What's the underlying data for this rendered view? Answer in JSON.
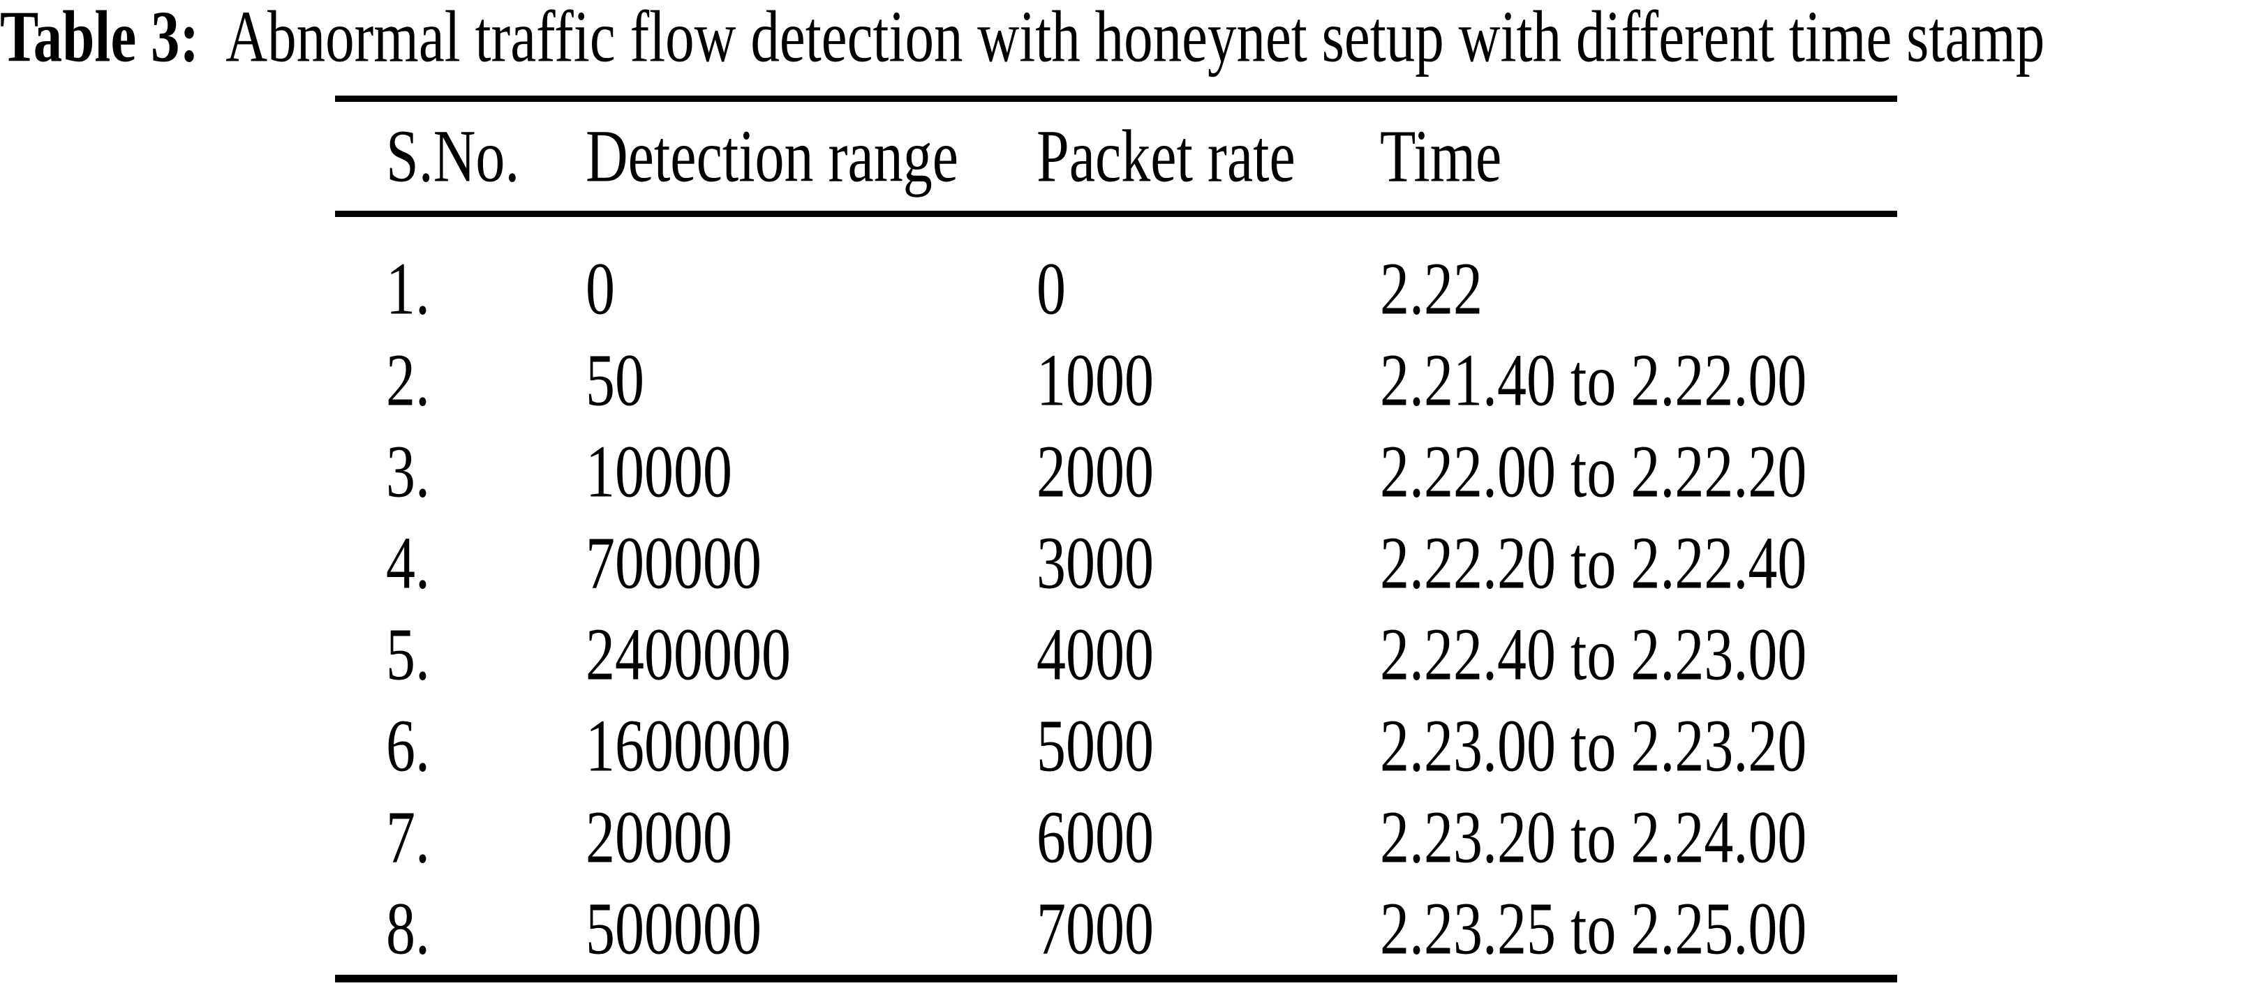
{
  "page": {
    "background_color": "#ffffff",
    "text_color": "#000000"
  },
  "caption": {
    "label": "Table 3:",
    "text": "Abnormal traffic flow detection with honeynet setup with different time stamp"
  },
  "table": {
    "headers": [
      "S.No.",
      "Detection range",
      "Packet rate",
      "Time"
    ],
    "rows": [
      [
        "1.",
        "0",
        "0",
        "2.22"
      ],
      [
        "2.",
        "50",
        "1000",
        "2.21.40 to 2.22.00"
      ],
      [
        "3.",
        "10000",
        "2000",
        "2.22.00 to 2.22.20"
      ],
      [
        "4.",
        "700000",
        "3000",
        "2.22.20 to 2.22.40"
      ],
      [
        "5.",
        "2400000",
        "4000",
        "2.22.40 to 2.23.00"
      ],
      [
        "6.",
        "1600000",
        "5000",
        "2.23.00 to 2.23.20"
      ],
      [
        "7.",
        "20000",
        "6000",
        "2.23.20 to 2.24.00"
      ],
      [
        "8.",
        "500000",
        "7000",
        "2.23.25 to 2.25.00"
      ]
    ]
  }
}
